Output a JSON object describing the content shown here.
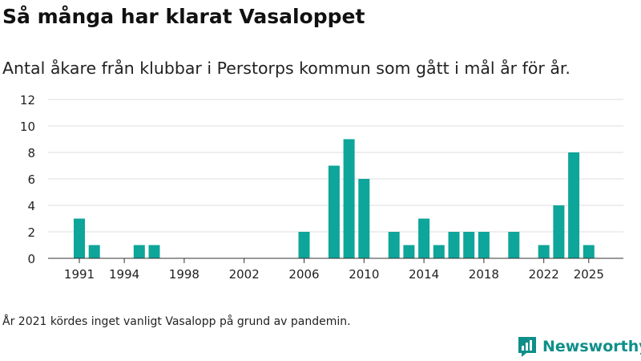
{
  "title": "Så många har klarat Vasaloppet",
  "subtitle": "Antal åkare från klubbar i Perstorps kommun som gått i mål år för år.",
  "footnote": "År 2021 kördes inget vanligt Vasalopp på grund av pandemin.",
  "brand": {
    "name": "Newsworthy",
    "icon": "bar-chart-logo-icon",
    "color": "#0e8f8a"
  },
  "chart_data": {
    "type": "bar",
    "categories": [
      1991,
      1992,
      1993,
      1994,
      1995,
      1996,
      1997,
      1998,
      1999,
      2000,
      2001,
      2002,
      2003,
      2004,
      2005,
      2006,
      2007,
      2008,
      2009,
      2010,
      2011,
      2012,
      2013,
      2014,
      2015,
      2016,
      2017,
      2018,
      2019,
      2020,
      2021,
      2022,
      2023,
      2024,
      2025
    ],
    "values": [
      3,
      1,
      0,
      0,
      1,
      1,
      0,
      0,
      0,
      0,
      0,
      0,
      0,
      0,
      0,
      2,
      0,
      7,
      9,
      6,
      0,
      2,
      1,
      3,
      1,
      2,
      2,
      2,
      0,
      2,
      0,
      1,
      4,
      8,
      1
    ],
    "xticks": [
      1991,
      1994,
      1998,
      2002,
      2006,
      2010,
      2014,
      2018,
      2022,
      2025
    ],
    "yticks": [
      0,
      2,
      4,
      6,
      8,
      10,
      12
    ],
    "ylim": [
      0,
      12
    ],
    "xlabel": "",
    "ylabel": "",
    "grid": true,
    "bar_color": "#0ea59a"
  }
}
